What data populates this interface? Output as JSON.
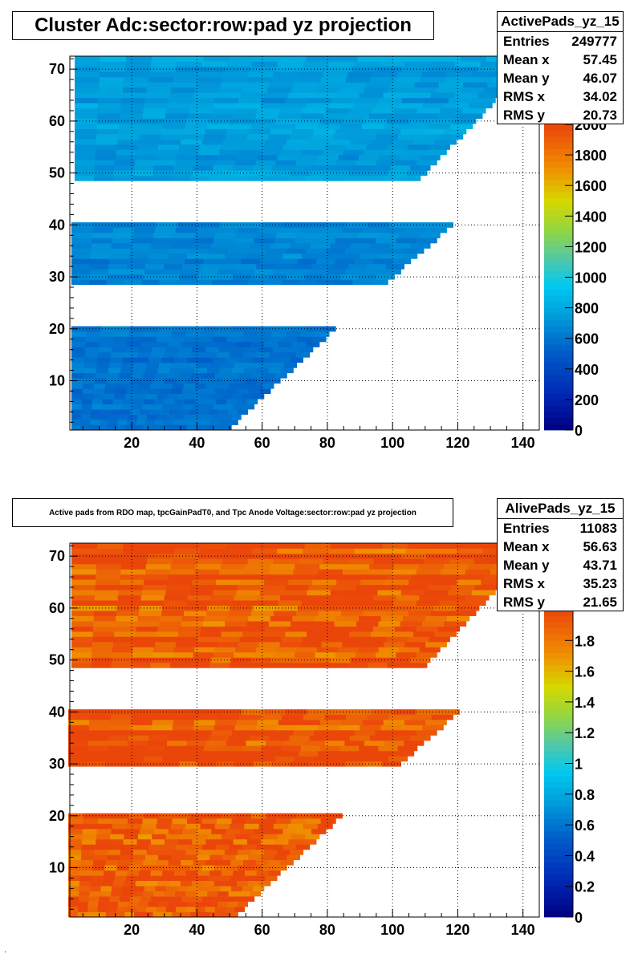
{
  "chart_data": [
    {
      "type": "heatmap",
      "title": "Cluster Adc:sector:row:pad yz projection",
      "xlabel": "",
      "ylabel": "",
      "xlim": [
        1,
        145
      ],
      "ylim": [
        0.5,
        72.5
      ],
      "x_ticks": [
        "20",
        "40",
        "60",
        "80",
        "100",
        "120",
        "140"
      ],
      "y_ticks": [
        "10",
        "20",
        "30",
        "40",
        "50",
        "60",
        "70"
      ],
      "z_range": [
        0,
        2000
      ],
      "z_ticks": [
        "0",
        "200",
        "400",
        "600",
        "800",
        "1000",
        "1200",
        "1400",
        "1600",
        "1800",
        "2000"
      ],
      "grid": true,
      "bands": [
        {
          "rows": [
            1,
            20
          ],
          "pad_start": 2,
          "pad_end_first_row": 50,
          "pad_end_last_row": 82,
          "typical_value": 600
        },
        {
          "rows": [
            29,
            40
          ],
          "pad_start": 2,
          "pad_end_first_row": 98,
          "pad_end_last_row": 118,
          "typical_value": 650
        },
        {
          "rows": [
            49,
            72
          ],
          "pad_start": 3,
          "pad_end_first_row": 108,
          "pad_end_last_row": 144,
          "typical_value": 750
        }
      ],
      "stats": {
        "name": "ActivePads_yz_15",
        "entries": "249777",
        "mean_x": "57.45",
        "mean_y": "46.07",
        "rms_x": "34.02",
        "rms_y": "20.73"
      }
    },
    {
      "type": "heatmap",
      "title": "Active pads from RDO map, tpcGainPadT0,  and Tpc Anode Voltage:sector:row:pad yz projection",
      "xlabel": "",
      "ylabel": "",
      "xlim": [
        1,
        145
      ],
      "ylim": [
        0.5,
        72.5
      ],
      "x_ticks": [
        "20",
        "40",
        "60",
        "80",
        "100",
        "120",
        "140"
      ],
      "y_ticks": [
        "10",
        "20",
        "30",
        "40",
        "50",
        "60",
        "70"
      ],
      "z_range": [
        0,
        2
      ],
      "z_ticks": [
        "0",
        "0.2",
        "0.4",
        "0.6",
        "0.8",
        "1",
        "1.2",
        "1.4",
        "1.6",
        "1.8"
      ],
      "grid": true,
      "bands": [
        {
          "rows": [
            1,
            20
          ],
          "pad_start": 1,
          "pad_end_first_row": 52,
          "pad_end_last_row": 84,
          "typical_value": 1.95
        },
        {
          "rows": [
            30,
            40
          ],
          "pad_start": 1,
          "pad_end_first_row": 102,
          "pad_end_last_row": 120,
          "typical_value": 1.95
        },
        {
          "rows": [
            49,
            72
          ],
          "pad_start": 2,
          "pad_end_first_row": 110,
          "pad_end_last_row": 144,
          "typical_value": 1.95
        }
      ],
      "stats": {
        "name": "AlivePads_yz_15",
        "entries": "11083",
        "mean_x": "56.63",
        "mean_y": "43.71",
        "rms_x": "35.23",
        "rms_y": "21.65"
      }
    }
  ]
}
